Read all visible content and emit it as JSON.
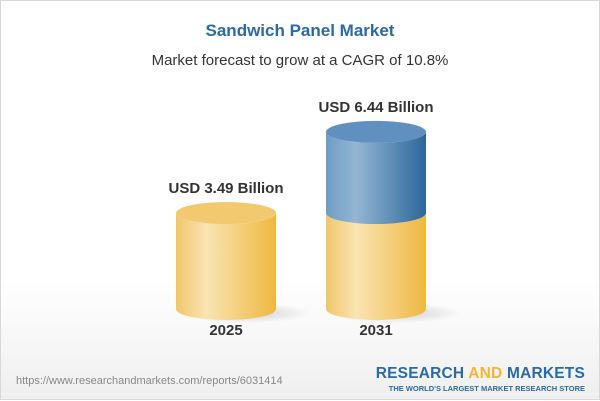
{
  "title": "Sandwich Panel Market",
  "subtitle": "Market forecast to grow at a CAGR of 10.8%",
  "chart_data": {
    "type": "bar",
    "style": "3d-cylinder",
    "categories": [
      "2025",
      "2031"
    ],
    "values": [
      3.49,
      6.44
    ],
    "data_labels": [
      "USD 3.49 Billion",
      "USD 6.44 Billion"
    ],
    "unit": "USD Billion",
    "colors": {
      "base": "#f1c35a",
      "growth": "#4f86b8"
    }
  },
  "footer": {
    "url": "https://www.researchandmarkets.com/reports/6031414",
    "logo_word1": "RESEARCH",
    "logo_word2": "AND",
    "logo_word3": "MARKETS",
    "tagline": "THE WORLD'S LARGEST MARKET RESEARCH STORE"
  }
}
